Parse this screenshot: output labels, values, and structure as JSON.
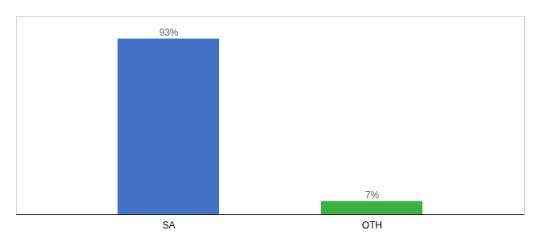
{
  "chart_data": {
    "type": "bar",
    "categories": [
      "SA",
      "OTH"
    ],
    "values": [
      93,
      7
    ],
    "colors": [
      "#4472c4",
      "#3cb043"
    ],
    "value_labels": [
      "93%",
      "7%"
    ],
    "data_labels": true,
    "ylim": [
      0,
      105
    ],
    "tick_labels": "x"
  }
}
